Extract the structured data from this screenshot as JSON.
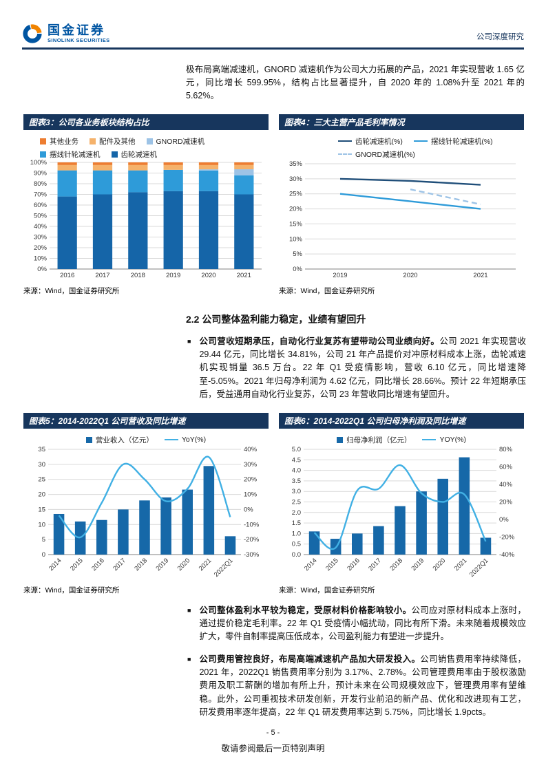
{
  "page": {
    "header": {
      "brand_cn": "国金证券",
      "brand_en": "SINOLINK SECURITIES",
      "doc_type": "公司深度研究"
    },
    "intro": "极布局高端减速机，GNORD 减速机作为公司大力拓展的产品，2021 年实现营收 1.65 亿元，同比增长 599.95%，结构占比显著提升，自 2020 年的 1.08%升至 2021 年的 5.62%。",
    "section_heading": "2.2 公司整体盈利能力稳定，业绩有望回升",
    "bullets": [
      {
        "lead": "公司营收短期承压，自动化行业复苏有望带动公司业绩向好。",
        "body": "公司 2021 年实现营收 29.44 亿元，同比增长 34.81%，公司 21 年产品提价对冲原材料成本上涨，齿轮减速机实现销量 36.5 万台。22 年 Q1 受疫情影响，营收 6.10 亿元，同比增速降至-5.05%。2021 年归母净利润为 4.62 亿元，同比增长 28.66%。预计 22 年短期承压后，受益通用自动化行业复苏，公司 23 年营收同比增速有望回升。"
      },
      {
        "lead": "公司整体盈利水平较为稳定，受原材料价格影响较小。",
        "body": "公司应对原材料成本上涨时，通过提价稳定毛利率。22 年 Q1 受疫情小幅扰动，同比有所下滑。未来随着规模效应扩大，零件自制率提高压低成本，公司盈利能力有望进一步提升。"
      },
      {
        "lead": "公司费用管控良好，布局高端减速机产品加大研发投入。",
        "body": "公司销售费用率持续降低，2021 年，2022Q1 销售费用率分别为 3.17%、2.78%。公司管理费用率由于股权激励费用及职工薪酬的增加有所上升，预计未来在公司规模效应下，管理费用率有望维稳。此外，公司重视技术研发创新，开发行业前沿的新产品、优化和改进现有工艺，研发费用率逐年提高，22 年 Q1 研发费用率达到 5.75%，同比增长 1.9pcts。"
      }
    ],
    "figures": [
      {
        "title": "图表3：公司各业务板块结构占比",
        "source": "来源：Wind，国金证券研究所"
      },
      {
        "title": "图表4：三大主营产品毛利率情况",
        "source": "来源：Wind，国金证券研究所"
      },
      {
        "title": "图表5：2014-2022Q1 公司营收及同比增速",
        "source": "来源：Wind，国金证券研究所"
      },
      {
        "title": "图表6：2014-2022Q1 公司归母净利润及同比增速",
        "source": "来源：Wind，国金证券研究所"
      }
    ],
    "footer": {
      "page_number": "- 5 -",
      "disclaimer": "敬请参阅最后一页特别声明"
    }
  },
  "chart_data": [
    {
      "id": "c3",
      "type": "bar",
      "variant": "stacked-100",
      "title": "公司各业务板块结构占比",
      "categories": [
        "2016",
        "2017",
        "2018",
        "2019",
        "2020",
        "2021"
      ],
      "series": [
        {
          "name": "齿轮减速机",
          "color": "#1565A8",
          "values": [
            68,
            70,
            72,
            73,
            73,
            70
          ]
        },
        {
          "name": "摆线针轮减速机",
          "color": "#2E9BD9",
          "values": [
            24.5,
            22.5,
            20.5,
            20,
            19.4,
            17.9
          ]
        },
        {
          "name": "GNORD减速机",
          "color": "#9DC3E6",
          "values": [
            0,
            0,
            0,
            0,
            1.08,
            5.62
          ]
        },
        {
          "name": "配件及其他",
          "color": "#F5B26B",
          "values": [
            5,
            5,
            5,
            4.5,
            4,
            4
          ]
        },
        {
          "name": "其他业务",
          "color": "#ED7D31",
          "values": [
            2.5,
            2.5,
            2.5,
            2.5,
            2.52,
            2.48
          ]
        }
      ],
      "legend_order": [
        4,
        3,
        2,
        1,
        0
      ],
      "ylim": [
        0,
        100
      ],
      "ytick_step": 10,
      "ylabel_format": "percent",
      "grid": true,
      "legend_position": "top"
    },
    {
      "id": "c4",
      "type": "line",
      "title": "三大主营产品毛利率情况",
      "categories": [
        "2019",
        "2020",
        "2021"
      ],
      "series": [
        {
          "name": "齿轮减速机(%)",
          "color": "#1F4E79",
          "dash": false,
          "values": [
            30,
            29.3,
            28
          ]
        },
        {
          "name": "摆线针轮减速机(%)",
          "color": "#2E9BD9",
          "dash": false,
          "values": [
            25,
            22.5,
            20
          ]
        },
        {
          "name": "GNORD减速机(%)",
          "color": "#9DC3E6",
          "dash": true,
          "values": [
            null,
            26.5,
            21.5
          ]
        }
      ],
      "ylim": [
        0,
        35
      ],
      "ytick_step": 5,
      "ylabel_format": "percent",
      "grid": true,
      "legend_position": "top"
    },
    {
      "id": "c5",
      "type": "combo",
      "title": "2014-2022Q1 公司营收及同比增速",
      "categories": [
        "2014",
        "2015",
        "2016",
        "2017",
        "2018",
        "2019",
        "2020",
        "2021",
        "2022Q1"
      ],
      "bar": {
        "name": "营业收入（亿元）",
        "color": "#1668A8",
        "values": [
          13.5,
          11.0,
          11.5,
          15.0,
          18.0,
          19.0,
          21.6,
          29.44,
          6.1
        ]
      },
      "line": {
        "name": "YoY(%)",
        "color": "#41B0E4",
        "values": [
          -4,
          -18.5,
          4.5,
          30,
          20,
          5.5,
          13.7,
          34.81,
          -5.05
        ]
      },
      "left_axis": {
        "min": 0,
        "max": 35,
        "step": 5
      },
      "right_axis": {
        "min": -30,
        "max": 40,
        "step": 10,
        "format": "percent"
      },
      "grid": true,
      "legend_position": "top"
    },
    {
      "id": "c6",
      "type": "combo",
      "title": "2014-2022Q1 公司归母净利润及同比增速",
      "categories": [
        "2014",
        "2015",
        "2016",
        "2017",
        "2018",
        "2019",
        "2020",
        "2021",
        "2022Q1"
      ],
      "bar": {
        "name": "归母净利润（亿元）",
        "color": "#1668A8",
        "values": [
          1.1,
          0.75,
          1.0,
          1.35,
          2.3,
          3.0,
          3.6,
          4.62,
          0.8
        ],
        "decimals": 1
      },
      "line": {
        "name": "YOY(%)",
        "color": "#41B0E4",
        "values": [
          -15,
          -32,
          33,
          35,
          62,
          30,
          20,
          28.66,
          -25
        ]
      },
      "left_axis": {
        "min": 0,
        "max": 5,
        "step": 0.5,
        "decimals": 1
      },
      "right_axis": {
        "min": -40,
        "max": 80,
        "step": 20,
        "format": "percent"
      },
      "grid": true,
      "legend_position": "top"
    }
  ]
}
